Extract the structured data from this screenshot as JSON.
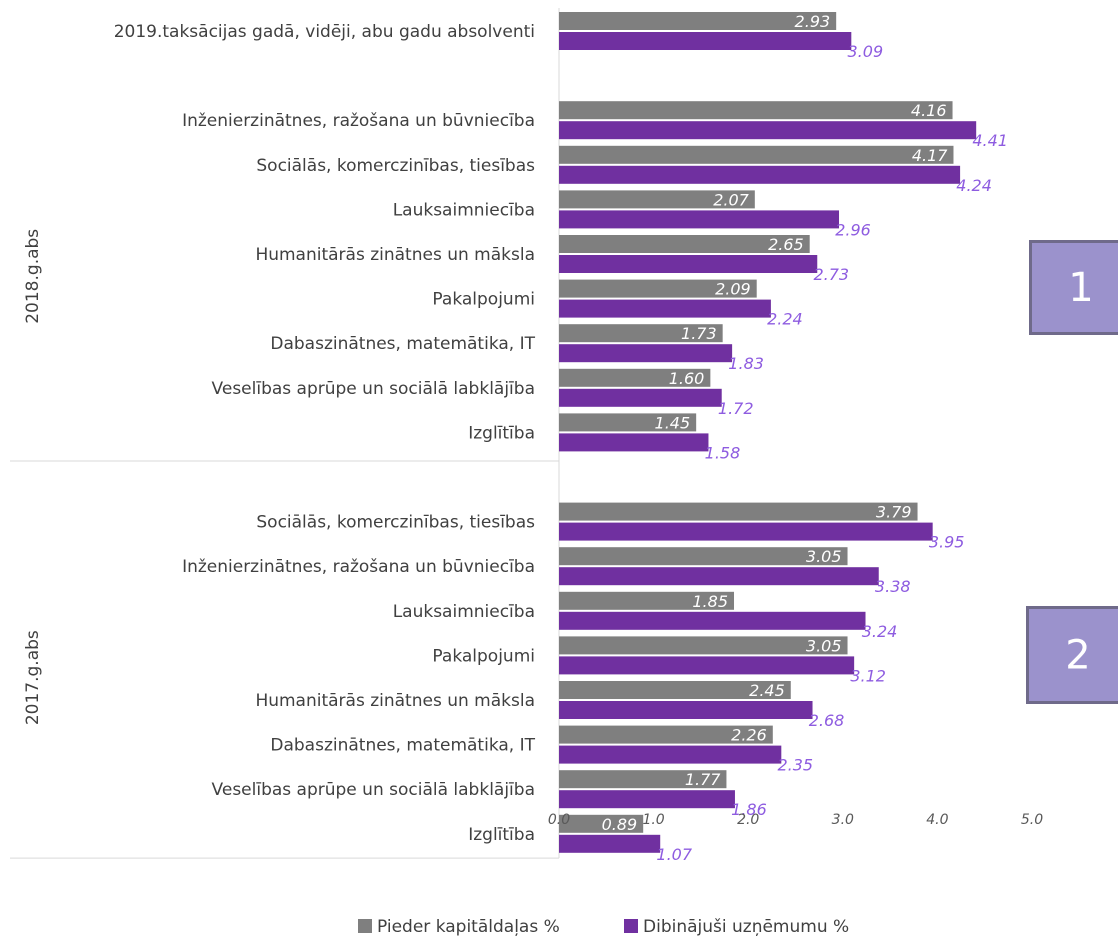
{
  "colors": {
    "series_a": "#7f7f7f",
    "series_b": "#7030a0",
    "label_b": "#8e5ce0",
    "badge_fill": "#9b92cc",
    "badge_border": "#6f6a8a"
  },
  "badges": [
    {
      "label": "1"
    },
    {
      "label": "2"
    }
  ],
  "chart_data": {
    "type": "bar",
    "orientation": "horizontal",
    "xlim": [
      0,
      5
    ],
    "x_ticks": [
      "0.0",
      "1.0",
      "2.0",
      "3.0",
      "4.0",
      "5.0"
    ],
    "grid": false,
    "legend_position": "bottom",
    "series": [
      {
        "name": "Pieder kapitāldaļas %"
      },
      {
        "name": "Dibinājuši uzņēmumu %"
      }
    ],
    "groups": [
      {
        "name": "",
        "categories": [
          {
            "label": "2019.taksācijas gadā, vidēji, abu gadu absolventi",
            "a": 2.93,
            "b": 3.09
          }
        ]
      },
      {
        "name": "2018.g.abs",
        "categories": [
          {
            "label": "Inženierzinātnes, ražošana un būvniecība",
            "a": 4.16,
            "b": 4.41
          },
          {
            "label": "Sociālās, komerczinības, tiesības",
            "a": 4.17,
            "b": 4.24
          },
          {
            "label": "Lauksaimniecība",
            "a": 2.07,
            "b": 2.96
          },
          {
            "label": "Humanitārās zinātnes un māksla",
            "a": 2.65,
            "b": 2.73
          },
          {
            "label": "Pakalpojumi",
            "a": 2.09,
            "b": 2.24
          },
          {
            "label": "Dabaszinātnes, matemātika, IT",
            "a": 1.73,
            "b": 1.83
          },
          {
            "label": "Veselības aprūpe un sociālā labklājība",
            "a": 1.6,
            "b": 1.72
          },
          {
            "label": "Izglītība",
            "a": 1.45,
            "b": 1.58
          }
        ]
      },
      {
        "name": "2017.g.abs",
        "categories": [
          {
            "label": "Sociālās, komerczinības, tiesības",
            "a": 3.79,
            "b": 3.95
          },
          {
            "label": "Inženierzinātnes, ražošana un būvniecība",
            "a": 3.05,
            "b": 3.38
          },
          {
            "label": "Lauksaimniecība",
            "a": 1.85,
            "b": 3.24
          },
          {
            "label": "Pakalpojumi",
            "a": 3.05,
            "b": 3.12
          },
          {
            "label": "Humanitārās zinātnes un māksla",
            "a": 2.45,
            "b": 2.68
          },
          {
            "label": "Dabaszinātnes, matemātika, IT",
            "a": 2.26,
            "b": 2.35
          },
          {
            "label": "Veselības aprūpe un sociālā labklājība",
            "a": 1.77,
            "b": 1.86
          },
          {
            "label": "Izglītība",
            "a": 0.89,
            "b": 1.07
          }
        ]
      }
    ]
  }
}
